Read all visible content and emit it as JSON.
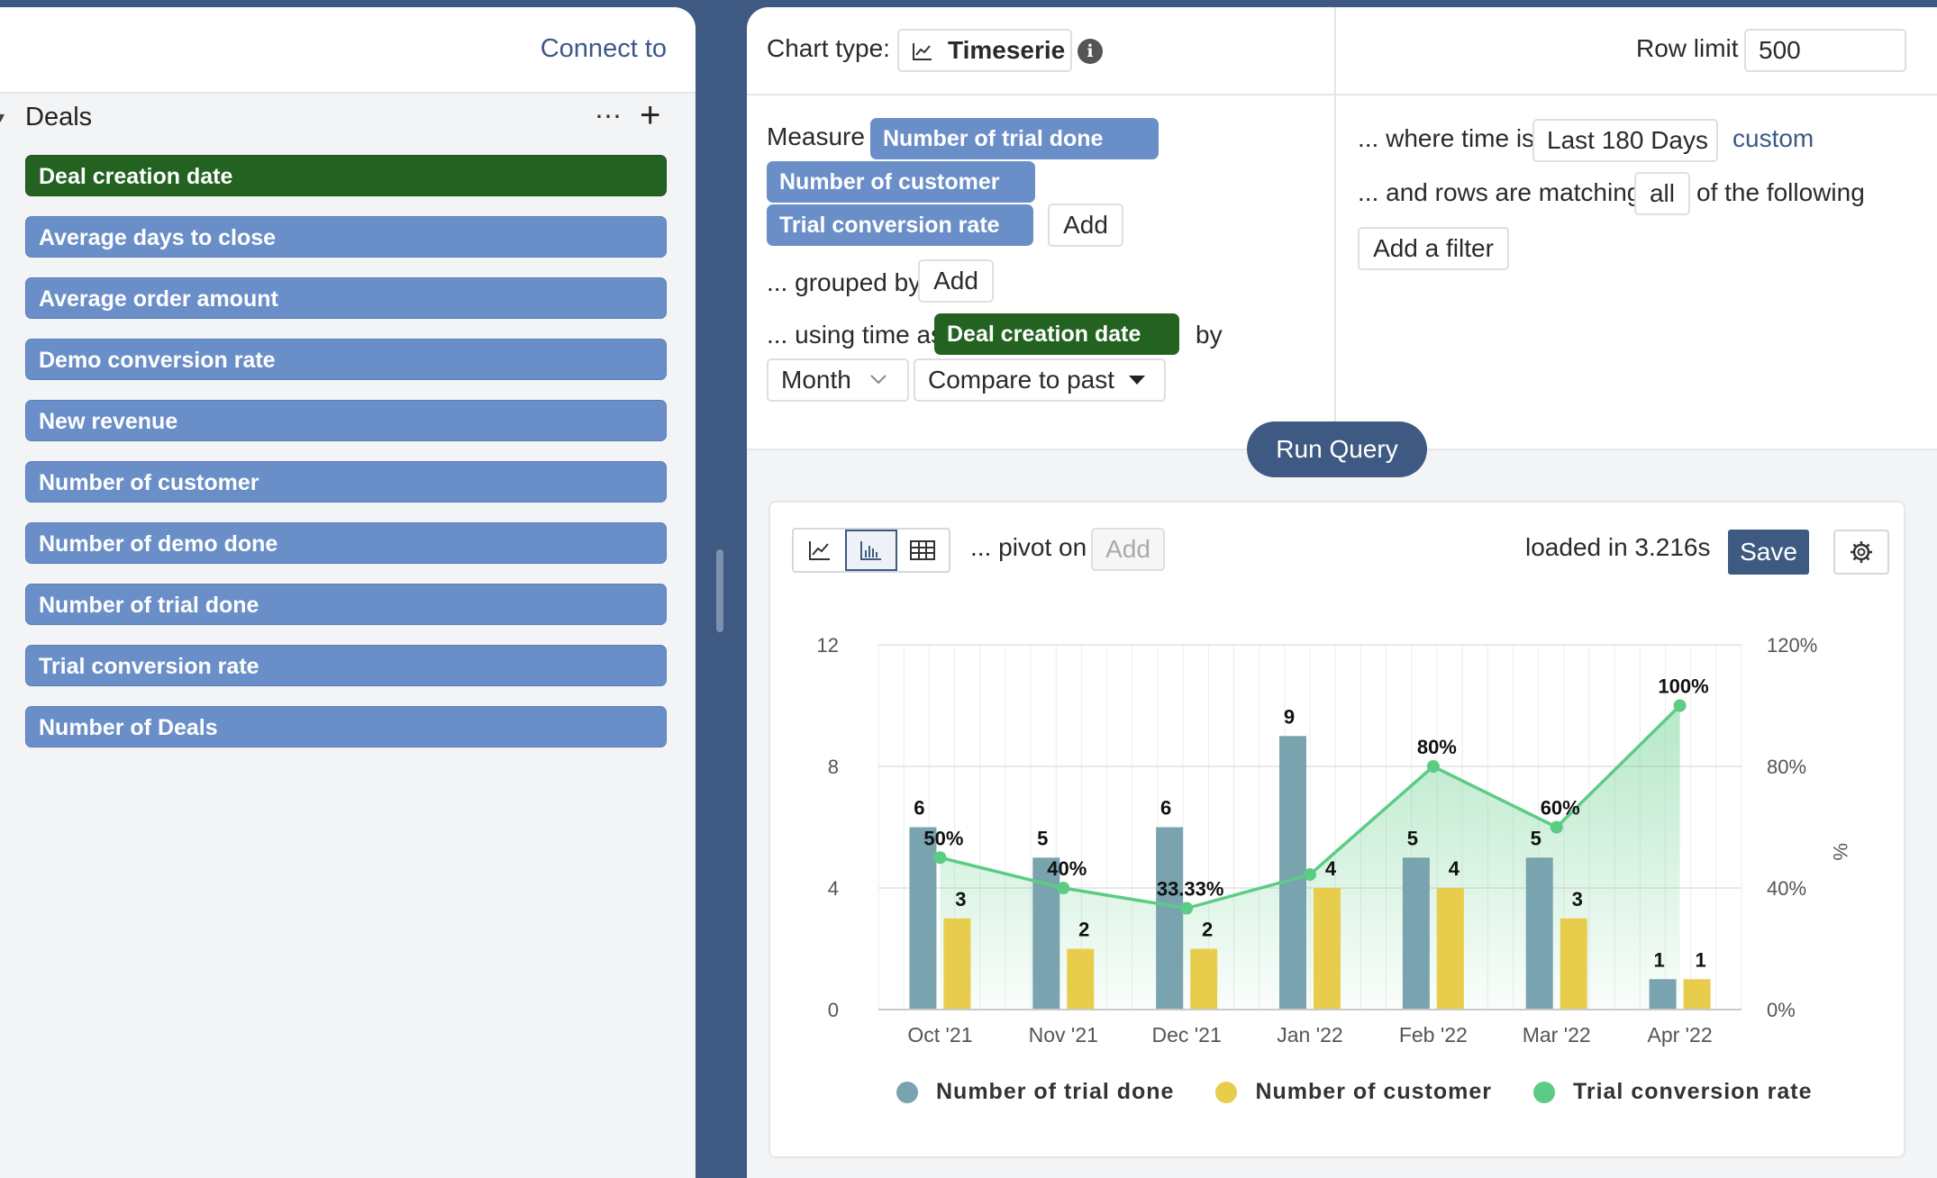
{
  "left": {
    "connect_label": "Connect to",
    "section_title": "Deals",
    "more_label": "⋯",
    "add_label": "+",
    "items": [
      "Deal creation date",
      "Average days to close",
      "Average order amount",
      "Demo conversion rate",
      "New revenue",
      "Number of customer",
      "Number of demo done",
      "Number of trial done",
      "Trial conversion rate",
      "Number of Deals"
    ]
  },
  "query": {
    "chart_type_label": "Chart type:",
    "chart_type_value": "Timeserie",
    "info_label": "i",
    "row_limit_label": "Row limit",
    "row_limit_value": "500",
    "measure_label": "Measure",
    "measures": [
      "Number of trial done",
      "Number of customer",
      "Trial conversion rate"
    ],
    "add_label": "Add",
    "grouped_by_label": "... grouped by",
    "using_time_label": "... using time as",
    "time_dimension": "Deal creation date",
    "by_label": "by",
    "granularity": "Month",
    "compare_label": "Compare to past",
    "where_time_label": "... where time is",
    "time_range": "Last 180 Days",
    "custom_label": "custom",
    "rows_matching_label": "... and rows are matching",
    "matching_value": "all",
    "of_following_label": "of the following",
    "add_filter_label": "Add a filter",
    "run_label": "Run Query"
  },
  "results": {
    "pivot_label": "... pivot on",
    "pivot_add_label": "Add",
    "loaded_label": "loaded in 3.216s",
    "save_label": "Save"
  },
  "colors": {
    "trial": "#7aa3b0",
    "customer": "#e8cd4d",
    "conversion": "#5ccc85",
    "accent": "#3f5a82",
    "green_tag": "#236221"
  },
  "chart_data": {
    "type": "bar",
    "categories": [
      "Oct '21",
      "Nov '21",
      "Dec '21",
      "Jan '22",
      "Feb '22",
      "Mar '22",
      "Apr '22"
    ],
    "series": [
      {
        "name": "Number of trial done",
        "type": "bar",
        "axis": "left",
        "values": [
          6,
          5,
          6,
          9,
          5,
          5,
          1
        ],
        "labels": [
          "6",
          "5",
          "6",
          "9",
          "5",
          "5",
          "1"
        ]
      },
      {
        "name": "Number of customer",
        "type": "bar",
        "axis": "left",
        "values": [
          3,
          2,
          2,
          4,
          4,
          3,
          1
        ],
        "labels": [
          "3",
          "2",
          "2",
          "4",
          "4",
          "3",
          "1"
        ]
      },
      {
        "name": "Trial conversion rate",
        "type": "area",
        "axis": "right",
        "values": [
          50,
          40,
          33.33,
          44.44,
          80,
          60,
          100
        ],
        "labels": [
          "50%",
          "40%",
          "33.33%",
          "",
          "80%",
          "60%",
          "100%"
        ]
      }
    ],
    "y_left": {
      "ticks": [
        "0",
        "4",
        "8",
        "12"
      ],
      "range": [
        0,
        12
      ]
    },
    "y_right": {
      "ticks": [
        "0%",
        "40%",
        "80%",
        "120%"
      ],
      "range": [
        0,
        120
      ],
      "label": "%"
    },
    "grid": true,
    "legend_position": "bottom"
  }
}
